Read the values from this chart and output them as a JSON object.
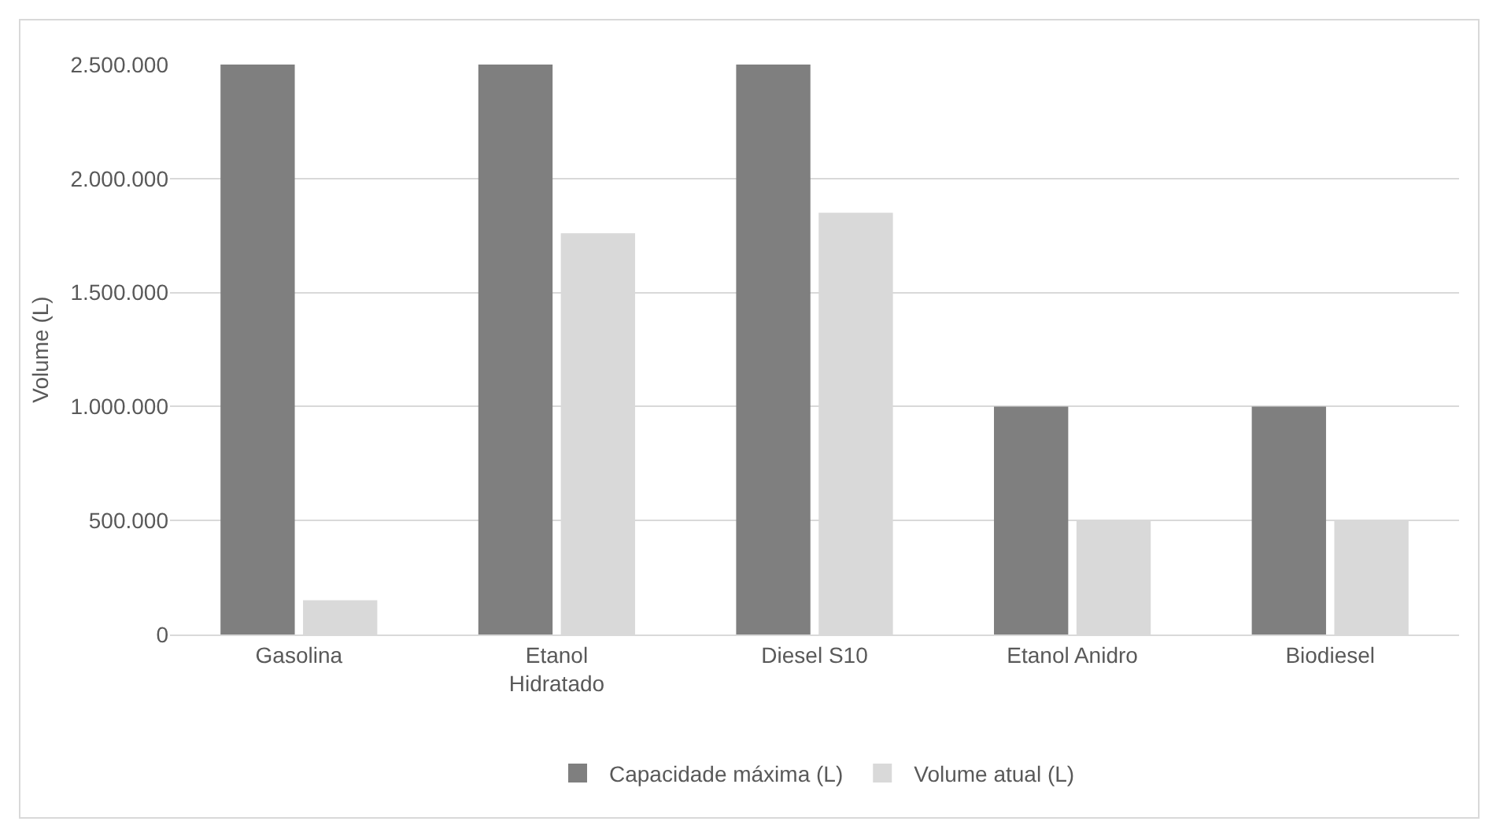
{
  "chart_data": {
    "type": "bar",
    "ylabel": "Volume (L)",
    "categories": [
      "Gasolina",
      "Etanol Hidratado",
      "Diesel S10",
      "Etanol Anidro",
      "Biodiesel"
    ],
    "series": [
      {
        "name": "Capacidade máxima (L)",
        "color": "#7f7f7f",
        "values": [
          2500000,
          2500000,
          2500000,
          1000000,
          1000000
        ]
      },
      {
        "name": "Volume atual (L)",
        "color": "#d9d9d9",
        "values": [
          150000,
          1760000,
          1850000,
          500000,
          500000
        ]
      }
    ],
    "ylim": [
      0,
      2500000
    ],
    "yticks": [
      {
        "value": 0,
        "label": "0"
      },
      {
        "value": 500000,
        "label": "500.000"
      },
      {
        "value": 1000000,
        "label": "1.000.000"
      },
      {
        "value": 1500000,
        "label": "1.500.000"
      },
      {
        "value": 2000000,
        "label": "2.000.000"
      },
      {
        "value": 2500000,
        "label": "2.500.000"
      }
    ],
    "grid": "y",
    "legend": "bottom"
  }
}
